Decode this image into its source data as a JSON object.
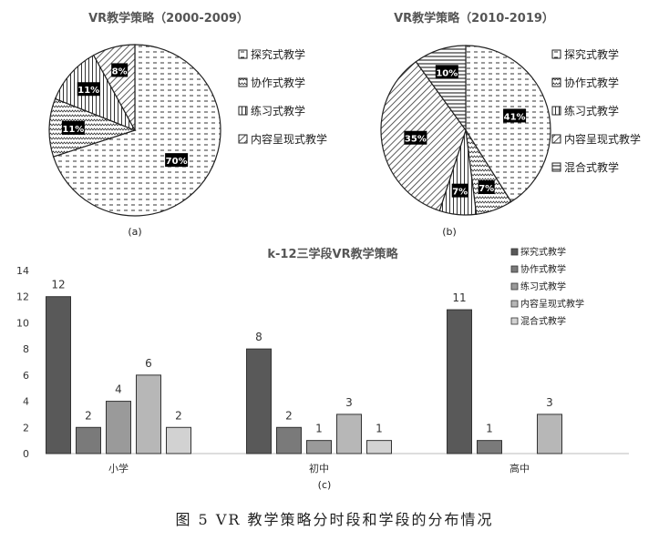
{
  "caption": "图 5   VR 教学策略分时段和学段的分布情况",
  "colors": {
    "bar1": "#595959",
    "bar2": "#7a7a7a",
    "bar3": "#9a9a9a",
    "bar4": "#b7b7b7",
    "bar5": "#d2d2d2"
  },
  "chart_data": [
    {
      "type": "pie",
      "title": "VR教学策略（2000-2009）",
      "sublabel": "(a)",
      "categories": [
        "探究式教学",
        "协作式教学",
        "练习式教学",
        "内容呈现式教学"
      ],
      "values": [
        70,
        11,
        11,
        8
      ],
      "value_labels": [
        "70%",
        "11%",
        "11%",
        "8%"
      ],
      "legend": [
        "探究式教学",
        "协作式教学",
        "练习式教学",
        "内容呈现式教学"
      ],
      "legend_position": "right"
    },
    {
      "type": "pie",
      "title": "VR教学策略（2010-2019）",
      "sublabel": "(b)",
      "categories": [
        "探究式教学",
        "协作式教学",
        "练习式教学",
        "内容呈现式教学",
        "混合式教学"
      ],
      "values": [
        41,
        7,
        7,
        35,
        10
      ],
      "value_labels": [
        "41%",
        "7%",
        "7%",
        "35%",
        "10%"
      ],
      "legend": [
        "探究式教学",
        "协作式教学",
        "练习式教学",
        "内容呈现式教学",
        "混合式教学"
      ],
      "legend_position": "right"
    },
    {
      "type": "bar",
      "title": "k-12三学段VR教学策略",
      "sublabel": "(c)",
      "categories": [
        "小学",
        "初中",
        "高中"
      ],
      "series": [
        {
          "name": "探究式教学",
          "values": [
            12,
            8,
            11
          ]
        },
        {
          "name": "协作式教学",
          "values": [
            2,
            2,
            1
          ]
        },
        {
          "name": "练习式教学",
          "values": [
            4,
            1,
            null
          ]
        },
        {
          "name": "内容呈现式教学",
          "values": [
            6,
            3,
            3
          ]
        },
        {
          "name": "混合式教学",
          "values": [
            2,
            1,
            null
          ]
        }
      ],
      "ylim": [
        0,
        14
      ],
      "yticks": [
        0,
        2,
        4,
        6,
        8,
        10,
        12,
        14
      ],
      "legend_position": "top-right"
    }
  ]
}
